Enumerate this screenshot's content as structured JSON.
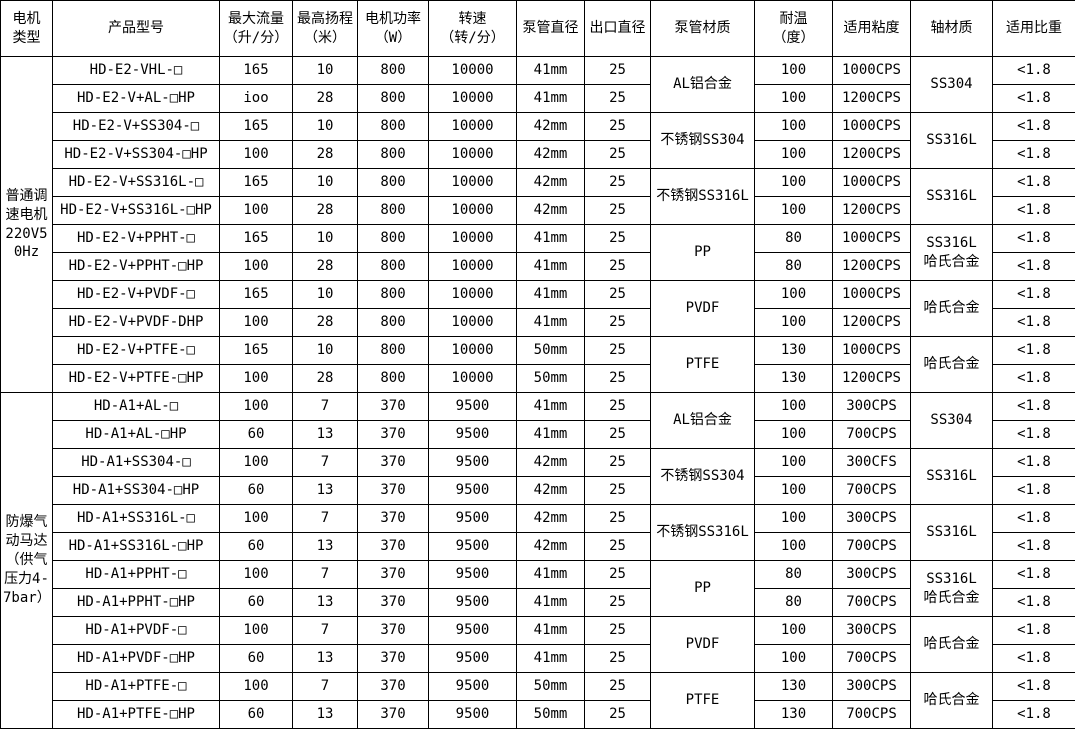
{
  "table": {
    "columns": [
      {
        "label": "电机\n类型",
        "width": 52
      },
      {
        "label": "产品型号",
        "width": 167
      },
      {
        "label": "最大流量\n（升/分）",
        "width": 73
      },
      {
        "label": "最高扬程\n（米）",
        "width": 65
      },
      {
        "label": "电机功率\n（W）",
        "width": 71
      },
      {
        "label": "转速\n（转/分）",
        "width": 88
      },
      {
        "label": "泵管直径",
        "width": 68
      },
      {
        "label": "出口直径",
        "width": 66
      },
      {
        "label": "泵管材质",
        "width": 104
      },
      {
        "label": "耐温\n（度）",
        "width": 78
      },
      {
        "label": "适用粘度",
        "width": 78
      },
      {
        "label": "轴材质",
        "width": 82
      },
      {
        "label": "适用比重",
        "width": 83
      }
    ],
    "groups": [
      {
        "motor_type": "普通调速电机220V50Hz",
        "rows": [
          {
            "model": "HD-E2-VHL-□",
            "max_flow": "165",
            "max_head": "10",
            "power": "800",
            "speed": "10000",
            "tube_diameter": "41mm",
            "outlet_diameter": "25",
            "pump_material": "AL铝合金",
            "temp": "100",
            "viscosity": "1000CPS",
            "shaft_material": "SS304",
            "gravity": "<1.8"
          },
          {
            "model": "HD-E2-V+AL-□HP",
            "max_flow": "ioo",
            "max_head": "28",
            "power": "800",
            "speed": "10000",
            "tube_diameter": "41mm",
            "outlet_diameter": "25",
            "temp": "100",
            "viscosity": "1200CPS",
            "gravity": "<1.8"
          },
          {
            "model": "HD-E2-V+SS304-□",
            "max_flow": "165",
            "max_head": "10",
            "power": "800",
            "speed": "10000",
            "tube_diameter": "42mm",
            "outlet_diameter": "25",
            "pump_material": "不锈钢SS304",
            "temp": "100",
            "viscosity": "1000CPS",
            "shaft_material": "SS316L",
            "gravity": "<1.8"
          },
          {
            "model": "HD-E2-V+SS304-□HP",
            "max_flow": "100",
            "max_head": "28",
            "power": "800",
            "speed": "10000",
            "tube_diameter": "42mm",
            "outlet_diameter": "25",
            "temp": "100",
            "viscosity": "1200CPS",
            "gravity": "<1.8"
          },
          {
            "model": "HD-E2-V+SS316L-□",
            "max_flow": "165",
            "max_head": "10",
            "power": "800",
            "speed": "10000",
            "tube_diameter": "42mm",
            "outlet_diameter": "25",
            "pump_material": "不锈钢SS316L",
            "temp": "100",
            "viscosity": "1000CPS",
            "shaft_material": "SS316L",
            "gravity": "<1.8"
          },
          {
            "model": "HD-E2-V+SS316L-□HP",
            "max_flow": "100",
            "max_head": "28",
            "power": "800",
            "speed": "10000",
            "tube_diameter": "42mm",
            "outlet_diameter": "25",
            "temp": "100",
            "viscosity": "1200CPS",
            "gravity": "<1.8"
          },
          {
            "model": "HD-E2-V+PPHT-□",
            "max_flow": "165",
            "max_head": "10",
            "power": "800",
            "speed": "10000",
            "tube_diameter": "41mm",
            "outlet_diameter": "25",
            "pump_material": "PP",
            "temp": "80",
            "viscosity": "1000CPS",
            "shaft_material": "SS316L\n哈氏合金",
            "gravity": "<1.8"
          },
          {
            "model": "HD-E2-V+PPHT-□HP",
            "max_flow": "100",
            "max_head": "28",
            "power": "800",
            "speed": "10000",
            "tube_diameter": "41mm",
            "outlet_diameter": "25",
            "temp": "80",
            "viscosity": "1200CPS",
            "gravity": "<1.8"
          },
          {
            "model": "HD-E2-V+PVDF-□",
            "max_flow": "165",
            "max_head": "10",
            "power": "800",
            "speed": "10000",
            "tube_diameter": "41mm",
            "outlet_diameter": "25",
            "pump_material": "PVDF",
            "temp": "100",
            "viscosity": "1000CPS",
            "shaft_material": "哈氏合金",
            "gravity": "<1.8"
          },
          {
            "model": "HD-E2-V+PVDF-DHP",
            "max_flow": "100",
            "max_head": "28",
            "power": "800",
            "speed": "10000",
            "tube_diameter": "41mm",
            "outlet_diameter": "25",
            "temp": "100",
            "viscosity": "1200CPS",
            "gravity": "<1.8"
          },
          {
            "model": "HD-E2-V+PTFE-□",
            "max_flow": "165",
            "max_head": "10",
            "power": "800",
            "speed": "10000",
            "tube_diameter": "50mm",
            "outlet_diameter": "25",
            "pump_material": "PTFE",
            "temp": "130",
            "viscosity": "1000CPS",
            "shaft_material": "哈氏合金",
            "gravity": "<1.8"
          },
          {
            "model": "HD-E2-V+PTFE-□HP",
            "max_flow": "100",
            "max_head": "28",
            "power": "800",
            "speed": "10000",
            "tube_diameter": "50mm",
            "outlet_diameter": "25",
            "temp": "130",
            "viscosity": "1200CPS",
            "gravity": "<1.8"
          }
        ]
      },
      {
        "motor_type": "防爆气动马达（供气压力4-7bar）",
        "rows": [
          {
            "model": "HD-A1+AL-□",
            "max_flow": "100",
            "max_head": "7",
            "power": "370",
            "speed": "9500",
            "tube_diameter": "41mm",
            "outlet_diameter": "25",
            "pump_material": "AL铝合金",
            "temp": "100",
            "viscosity": "300CPS",
            "shaft_material": "SS304",
            "gravity": "<1.8"
          },
          {
            "model": "HD-A1+AL-□HP",
            "max_flow": "60",
            "max_head": "13",
            "power": "370",
            "speed": "9500",
            "tube_diameter": "41mm",
            "outlet_diameter": "25",
            "temp": "100",
            "viscosity": "700CPS",
            "gravity": "<1.8"
          },
          {
            "model": "HD-A1+SS304-□",
            "max_flow": "100",
            "max_head": "7",
            "power": "370",
            "speed": "9500",
            "tube_diameter": "42mm",
            "outlet_diameter": "25",
            "pump_material": "不锈钢SS304",
            "temp": "100",
            "viscosity": "300CFS",
            "shaft_material": "SS316L",
            "gravity": "<1.8"
          },
          {
            "model": "HD-A1+SS304-□HP",
            "max_flow": "60",
            "max_head": "13",
            "power": "370",
            "speed": "9500",
            "tube_diameter": "42mm",
            "outlet_diameter": "25",
            "temp": "100",
            "viscosity": "700CPS",
            "gravity": "<1.8"
          },
          {
            "model": "HD-A1+SS316L-□",
            "max_flow": "100",
            "max_head": "7",
            "power": "370",
            "speed": "9500",
            "tube_diameter": "42mm",
            "outlet_diameter": "25",
            "pump_material": "不锈钢SS316L",
            "temp": "100",
            "viscosity": "300CPS",
            "shaft_material": "SS316L",
            "gravity": "<1.8"
          },
          {
            "model": "HD-A1+SS316L-□HP",
            "max_flow": "60",
            "max_head": "13",
            "power": "370",
            "speed": "9500",
            "tube_diameter": "42mm",
            "outlet_diameter": "25",
            "temp": "100",
            "viscosity": "700CPS",
            "gravity": "<1.8"
          },
          {
            "model": "HD-A1+PPHT-□",
            "max_flow": "100",
            "max_head": "7",
            "power": "370",
            "speed": "9500",
            "tube_diameter": "41mm",
            "outlet_diameter": "25",
            "pump_material": "PP",
            "temp": "80",
            "viscosity": "300CPS",
            "shaft_material": "SS316L\n哈氏合金",
            "gravity": "<1.8"
          },
          {
            "model": "HD-A1+PPHT-□HP",
            "max_flow": "60",
            "max_head": "13",
            "power": "370",
            "speed": "9500",
            "tube_diameter": "41mm",
            "outlet_diameter": "25",
            "temp": "80",
            "viscosity": "700CPS",
            "gravity": "<1.8"
          },
          {
            "model": "HD-A1+PVDF-□",
            "max_flow": "100",
            "max_head": "7",
            "power": "370",
            "speed": "9500",
            "tube_diameter": "41mm",
            "outlet_diameter": "25",
            "pump_material": "PVDF",
            "temp": "100",
            "viscosity": "300CPS",
            "shaft_material": "哈氏合金",
            "gravity": "<1.8"
          },
          {
            "model": "HD-A1+PVDF-□HP",
            "max_flow": "60",
            "max_head": "13",
            "power": "370",
            "speed": "9500",
            "tube_diameter": "41mm",
            "outlet_diameter": "25",
            "temp": "100",
            "viscosity": "700CPS",
            "gravity": "<1.8"
          },
          {
            "model": "HD-A1+PTFE-□",
            "max_flow": "100",
            "max_head": "7",
            "power": "370",
            "speed": "9500",
            "tube_diameter": "50mm",
            "outlet_diameter": "25",
            "pump_material": "PTFE",
            "temp": "130",
            "viscosity": "300CPS",
            "shaft_material": "哈氏合金",
            "gravity": "<1.8"
          },
          {
            "model": "HD-A1+PTFE-□HP",
            "max_flow": "60",
            "max_head": "13",
            "power": "370",
            "speed": "9500",
            "tube_diameter": "50mm",
            "outlet_diameter": "25",
            "temp": "130",
            "viscosity": "700CPS",
            "gravity": "<1.8"
          }
        ]
      }
    ]
  }
}
